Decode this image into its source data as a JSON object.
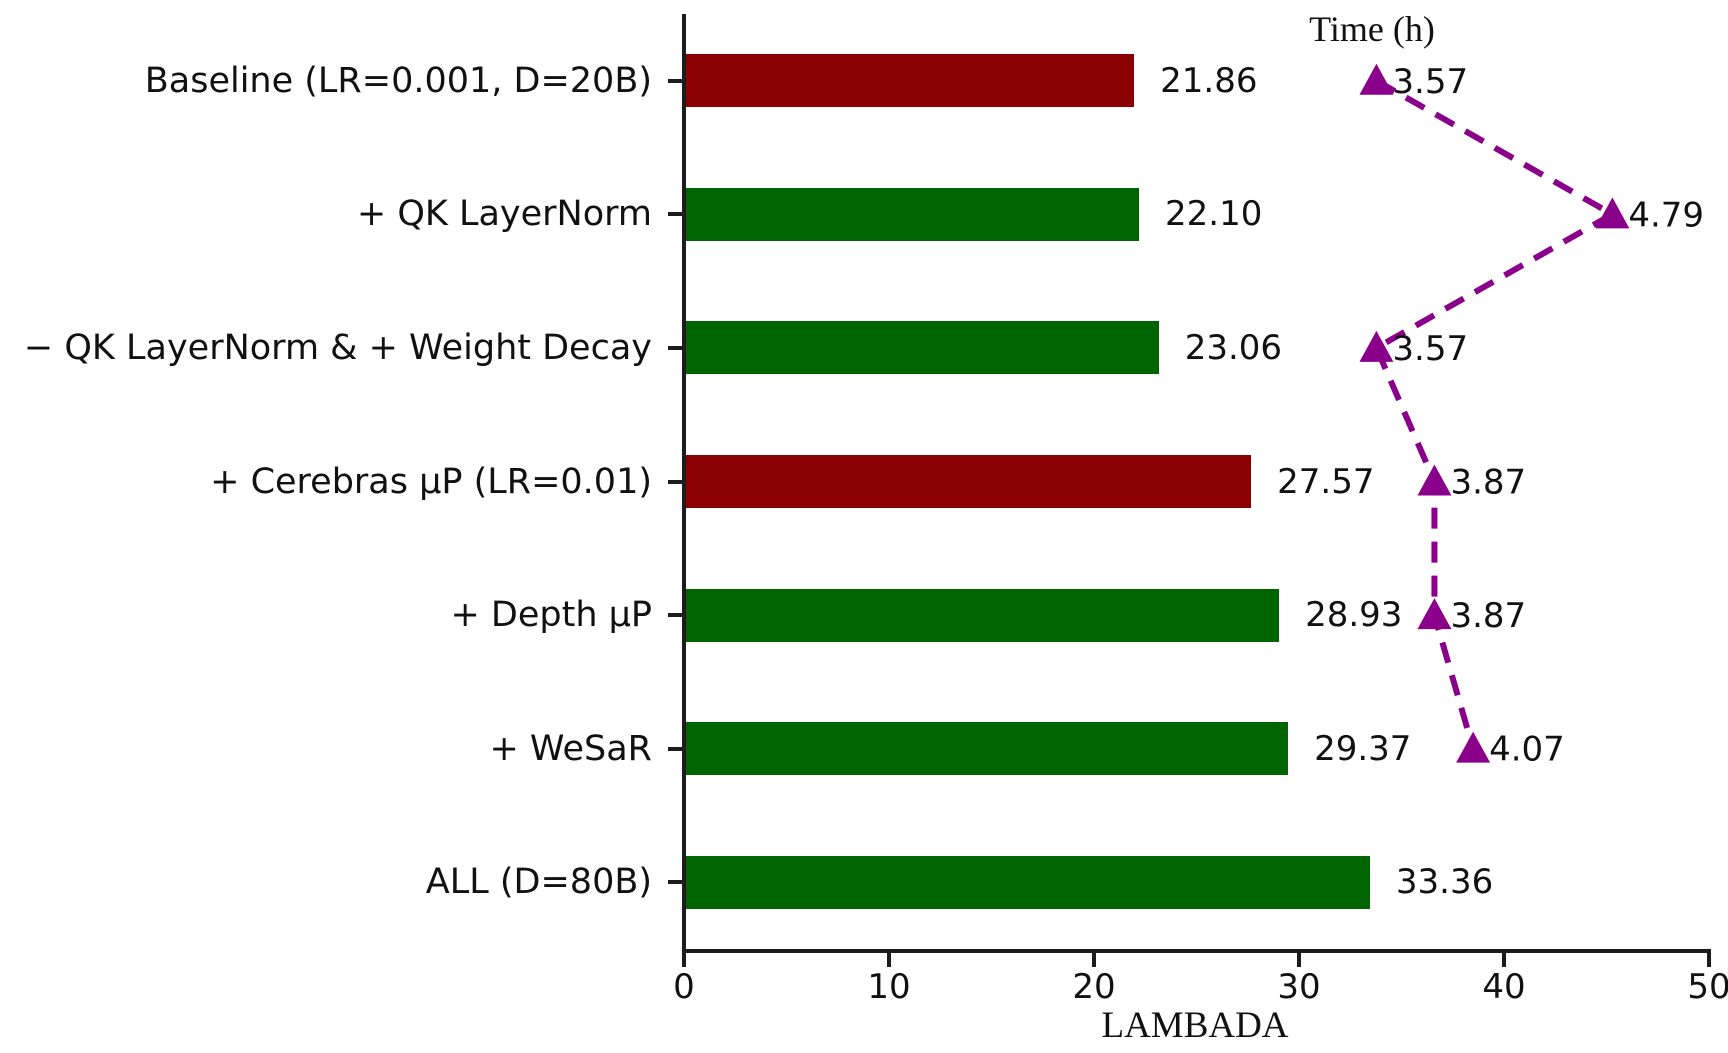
{
  "chart_data": {
    "type": "bar",
    "orientation": "horizontal",
    "title": "",
    "xlabel": "LAMBADA",
    "ylabel": "",
    "xlim": [
      0,
      50
    ],
    "xticks": [
      "0",
      "10",
      "20",
      "30",
      "40",
      "50"
    ],
    "xtick_values": [
      0,
      10,
      20,
      30,
      40,
      50
    ],
    "grid": false,
    "legend_position": "none",
    "categories": [
      "Baseline (LR=0.001, D=20B)",
      "+ QK LayerNorm",
      "− QK LayerNorm & + Weight Decay",
      "+ Cerebras μP (LR=0.01)",
      "+ Depth μP",
      "+ WeSaR",
      "ALL (D=80B)"
    ],
    "bars": {
      "name": "LAMBADA score",
      "values": [
        21.86,
        22.1,
        23.06,
        27.57,
        28.93,
        29.37,
        33.36
      ],
      "labels": [
        "21.86",
        "22.10",
        "23.06",
        "27.57",
        "28.93",
        "29.37",
        "33.36"
      ],
      "colors": [
        "#8B0000",
        "#006400",
        "#006400",
        "#8B0000",
        "#006400",
        "#006400",
        "#006400"
      ]
    },
    "time_series": {
      "title": "Time (h)",
      "type": "line",
      "line_style": "dashed",
      "marker": "triangle-up",
      "color": "#8B008B",
      "axis_min": 0,
      "axis_max": 5.3,
      "values": [
        3.57,
        4.79,
        3.57,
        3.87,
        3.87,
        4.07,
        null
      ],
      "labels": [
        "3.57",
        "4.79",
        "3.57",
        "3.87",
        "3.87",
        "4.07"
      ]
    },
    "colors": {
      "bar_red": "#8B0000",
      "bar_green": "#006400",
      "line_purple": "#8B008B",
      "text": "#111111",
      "axis": "#1c1c1c"
    }
  }
}
